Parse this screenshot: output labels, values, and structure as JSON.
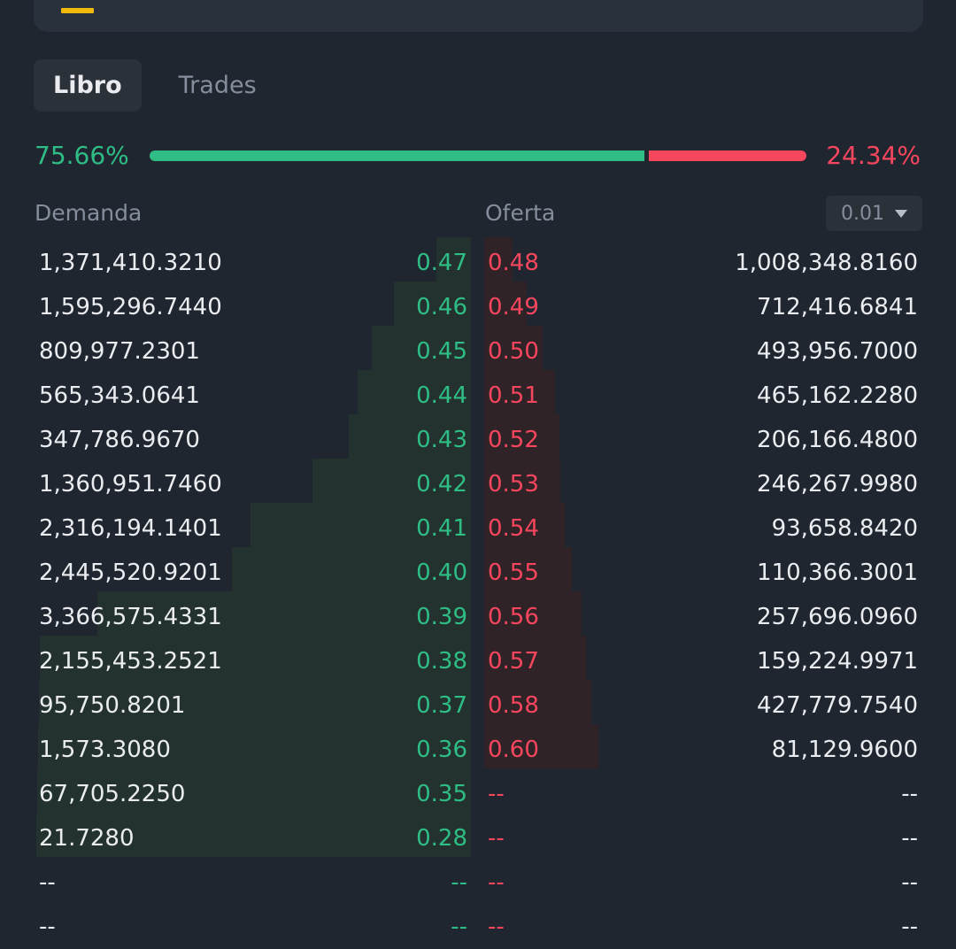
{
  "tabs": [
    {
      "label": "Libro",
      "active": true
    },
    {
      "label": "Trades",
      "active": false
    }
  ],
  "ratio": {
    "buy": "75.66%",
    "sell": "24.34%",
    "buy_fraction": 0.7566
  },
  "headers": {
    "bid": "Demanda",
    "ask": "Oferta"
  },
  "precision": {
    "value": "0.01"
  },
  "colors": {
    "buy": "#2ebd85",
    "sell": "#f6465d",
    "accent": "#f0b90b",
    "background": "#1f2630"
  },
  "bids": [
    {
      "qty": "1,371,410.3210",
      "price": "0.47"
    },
    {
      "qty": "1,595,296.7440",
      "price": "0.46"
    },
    {
      "qty": "809,977.2301",
      "price": "0.45"
    },
    {
      "qty": "565,343.0641",
      "price": "0.44"
    },
    {
      "qty": "347,786.9670",
      "price": "0.43"
    },
    {
      "qty": "1,360,951.7460",
      "price": "0.42"
    },
    {
      "qty": "2,316,194.1401",
      "price": "0.41"
    },
    {
      "qty": "2,445,520.9201",
      "price": "0.40"
    },
    {
      "qty": "3,366,575.4331",
      "price": "0.39"
    },
    {
      "qty": "2,155,453.2521",
      "price": "0.38"
    },
    {
      "qty": "95,750.8201",
      "price": "0.37"
    },
    {
      "qty": "1,573.3080",
      "price": "0.36"
    },
    {
      "qty": "67,705.2250",
      "price": "0.35"
    },
    {
      "qty": "21.7280",
      "price": "0.28"
    },
    {
      "qty": "--",
      "price": "--"
    },
    {
      "qty": "--",
      "price": "--"
    }
  ],
  "asks": [
    {
      "price": "0.48",
      "qty": "1,008,348.8160"
    },
    {
      "price": "0.49",
      "qty": "712,416.6841"
    },
    {
      "price": "0.50",
      "qty": "493,956.7000"
    },
    {
      "price": "0.51",
      "qty": "465,162.2280"
    },
    {
      "price": "0.52",
      "qty": "206,166.4800"
    },
    {
      "price": "0.53",
      "qty": "246,267.9980"
    },
    {
      "price": "0.54",
      "qty": "93,658.8420"
    },
    {
      "price": "0.55",
      "qty": "110,366.3001"
    },
    {
      "price": "0.56",
      "qty": "257,696.0960"
    },
    {
      "price": "0.57",
      "qty": "159,224.9971"
    },
    {
      "price": "0.58",
      "qty": "427,779.7540"
    },
    {
      "price": "0.60",
      "qty": "81,129.9600"
    },
    {
      "price": "--",
      "qty": "--"
    },
    {
      "price": "--",
      "qty": "--"
    },
    {
      "price": "--",
      "qty": "--"
    },
    {
      "price": "--",
      "qty": "--"
    }
  ]
}
